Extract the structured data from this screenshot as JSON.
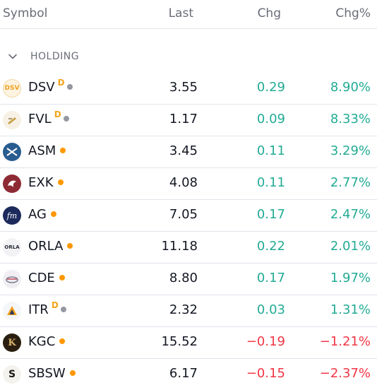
{
  "header": {
    "symbol": "Symbol",
    "last": "Last",
    "chg": "Chg",
    "chg_pct": "Chg%"
  },
  "group": {
    "label": "HOLDING",
    "icon": "chevron-down-icon"
  },
  "colors": {
    "positive": "#22ab94",
    "negative": "#f23645",
    "badge": "#f3a51b",
    "dot_orange": "#ff9800",
    "dot_grey": "#9598a1"
  },
  "rows": [
    {
      "symbol": "DSV",
      "badge": "D",
      "dot": "grey",
      "last": "3.55",
      "chg": "0.29",
      "chg_pct": "8.90%",
      "direction": "up",
      "logo_text": "DSV"
    },
    {
      "symbol": "FVL",
      "badge": "D",
      "dot": "grey",
      "last": "1.17",
      "chg": "0.09",
      "chg_pct": "8.33%",
      "direction": "up",
      "logo_text": ""
    },
    {
      "symbol": "ASM",
      "badge": "",
      "dot": "orange",
      "last": "3.45",
      "chg": "0.11",
      "chg_pct": "3.29%",
      "direction": "up",
      "logo_text": ""
    },
    {
      "symbol": "EXK",
      "badge": "",
      "dot": "orange",
      "last": "4.08",
      "chg": "0.11",
      "chg_pct": "2.77%",
      "direction": "up",
      "logo_text": ""
    },
    {
      "symbol": "AG",
      "badge": "",
      "dot": "orange",
      "last": "7.05",
      "chg": "0.17",
      "chg_pct": "2.47%",
      "direction": "up",
      "logo_text": "fm"
    },
    {
      "symbol": "ORLA",
      "badge": "",
      "dot": "orange",
      "last": "11.18",
      "chg": "0.22",
      "chg_pct": "2.01%",
      "direction": "up",
      "logo_text": "ORLA"
    },
    {
      "symbol": "CDE",
      "badge": "",
      "dot": "orange",
      "last": "8.80",
      "chg": "0.17",
      "chg_pct": "1.97%",
      "direction": "up",
      "logo_text": ""
    },
    {
      "symbol": "ITR",
      "badge": "D",
      "dot": "grey",
      "last": "2.32",
      "chg": "0.03",
      "chg_pct": "1.31%",
      "direction": "up",
      "logo_text": ""
    },
    {
      "symbol": "KGC",
      "badge": "",
      "dot": "orange",
      "last": "15.52",
      "chg": "−0.19",
      "chg_pct": "−1.21%",
      "direction": "down",
      "logo_text": "K"
    },
    {
      "symbol": "SBSW",
      "badge": "",
      "dot": "orange",
      "last": "6.17",
      "chg": "−0.15",
      "chg_pct": "−2.37%",
      "direction": "down",
      "logo_text": "S"
    }
  ]
}
